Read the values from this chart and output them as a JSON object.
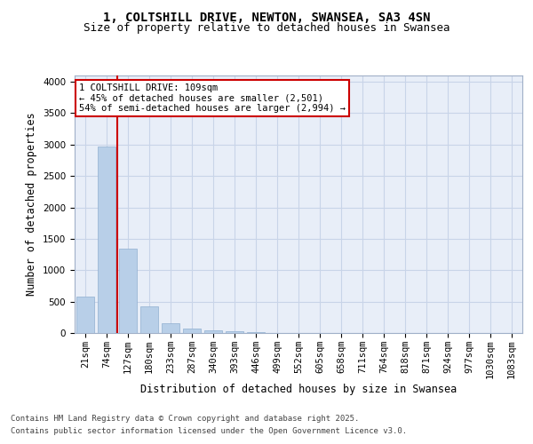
{
  "title_line1": "1, COLTSHILL DRIVE, NEWTON, SWANSEA, SA3 4SN",
  "title_line2": "Size of property relative to detached houses in Swansea",
  "xlabel": "Distribution of detached houses by size in Swansea",
  "ylabel": "Number of detached properties",
  "categories": [
    "21sqm",
    "74sqm",
    "127sqm",
    "180sqm",
    "233sqm",
    "287sqm",
    "340sqm",
    "393sqm",
    "446sqm",
    "499sqm",
    "552sqm",
    "605sqm",
    "658sqm",
    "711sqm",
    "764sqm",
    "818sqm",
    "871sqm",
    "924sqm",
    "977sqm",
    "1030sqm",
    "1083sqm"
  ],
  "values": [
    580,
    2970,
    1340,
    430,
    155,
    75,
    45,
    30,
    20,
    0,
    0,
    0,
    0,
    0,
    0,
    0,
    0,
    0,
    0,
    0,
    0
  ],
  "bar_color": "#b8cfe8",
  "bar_edge_color": "#90afd0",
  "vline_color": "#cc0000",
  "annotation_text": "1 COLTSHILL DRIVE: 109sqm\n← 45% of detached houses are smaller (2,501)\n54% of semi-detached houses are larger (2,994) →",
  "annotation_box_color": "#cc0000",
  "ylim": [
    0,
    4100
  ],
  "yticks": [
    0,
    500,
    1000,
    1500,
    2000,
    2500,
    3000,
    3500,
    4000
  ],
  "grid_color": "#c8d4e8",
  "background_color": "#e8eef8",
  "footer_line1": "Contains HM Land Registry data © Crown copyright and database right 2025.",
  "footer_line2": "Contains public sector information licensed under the Open Government Licence v3.0.",
  "title_fontsize": 10,
  "subtitle_fontsize": 9,
  "axis_label_fontsize": 8.5,
  "tick_fontsize": 7.5,
  "footer_fontsize": 6.5
}
